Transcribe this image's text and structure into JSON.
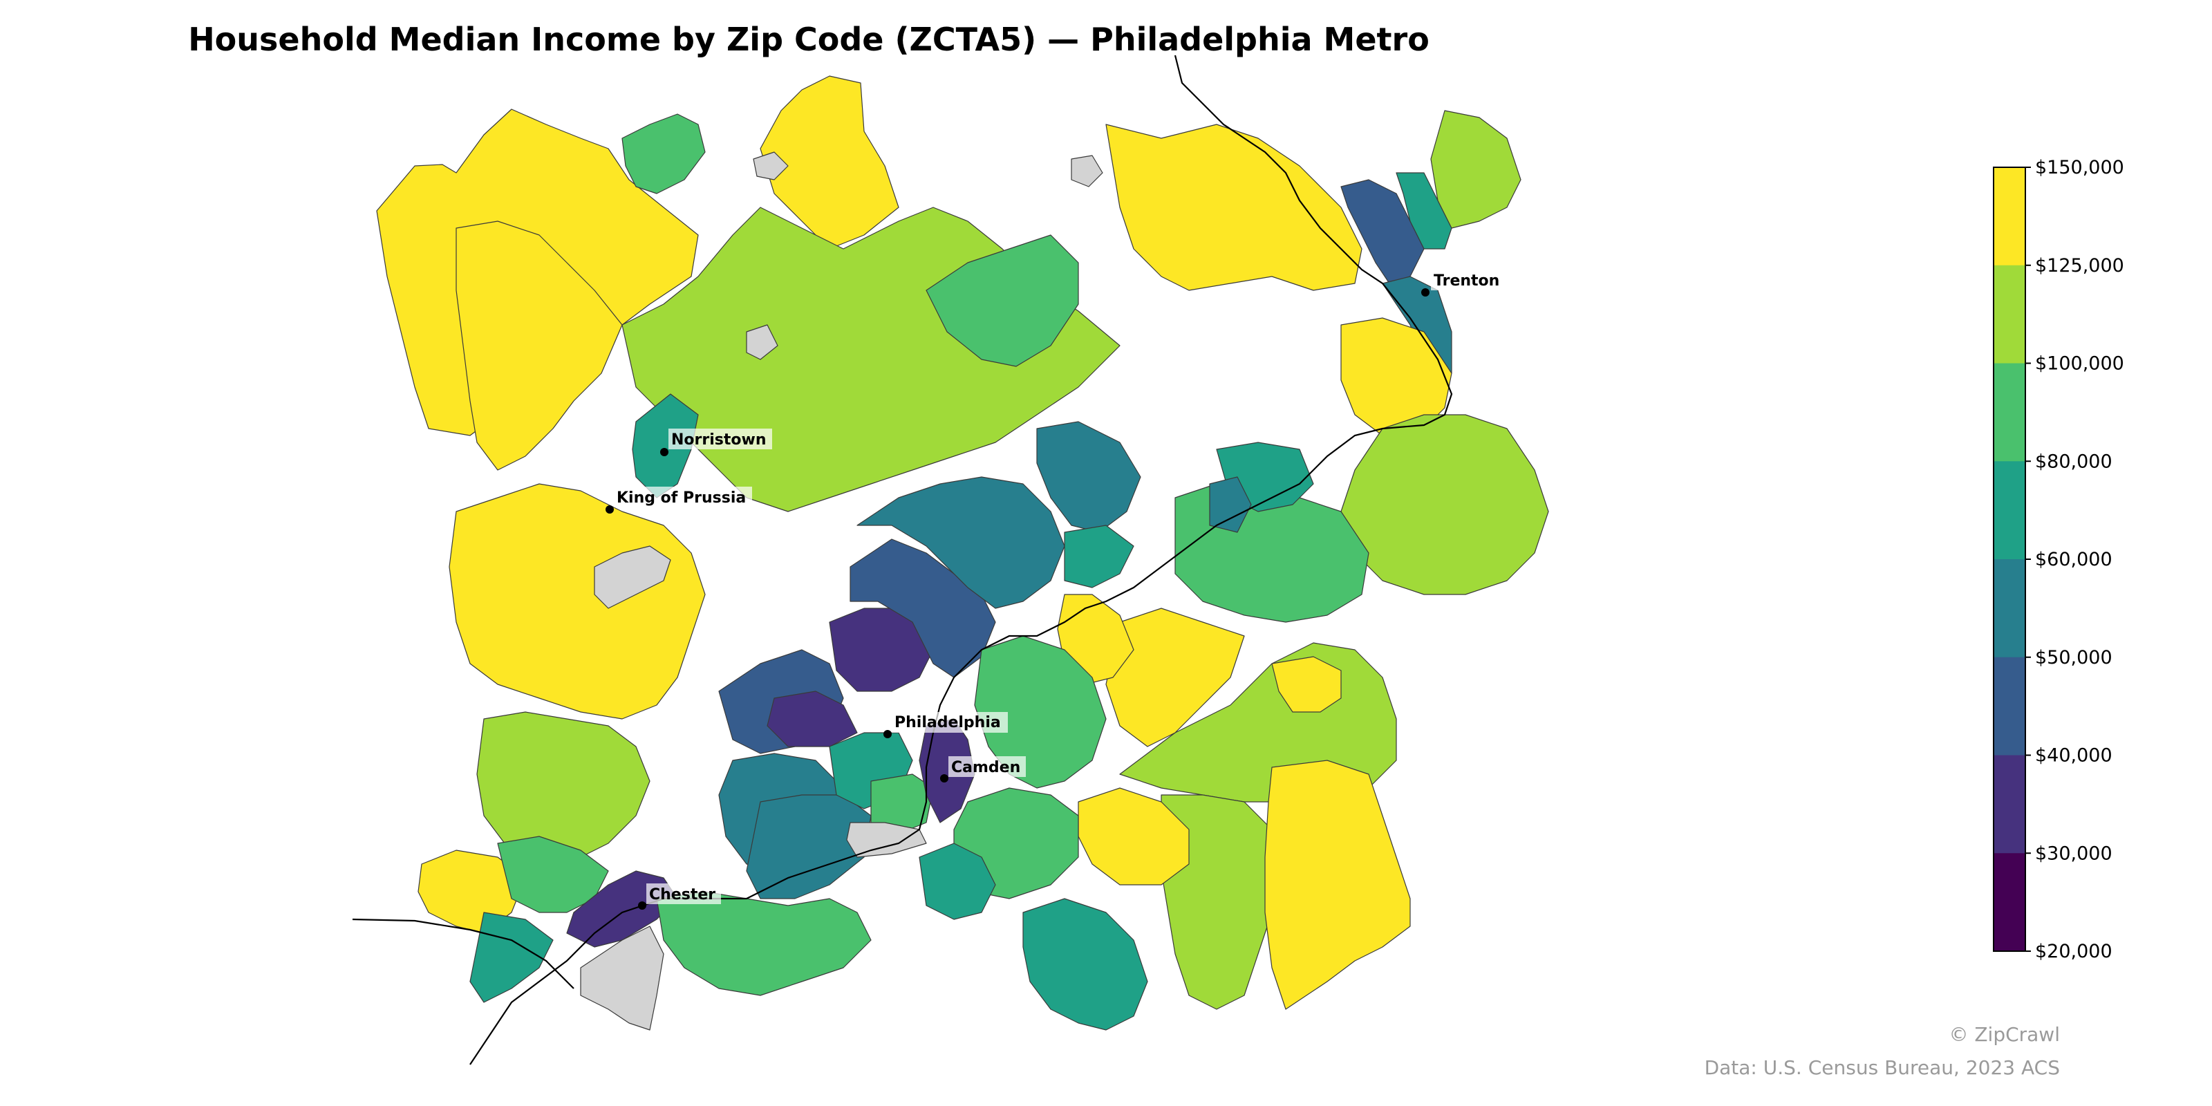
{
  "title": "Household Median Income by Zip Code (ZCTA5) — Philadelphia Metro",
  "colorbar": {
    "ticks": [
      "$150,000",
      "$125,000",
      "$100,000",
      "$80,000",
      "$60,000",
      "$50,000",
      "$40,000",
      "$30,000",
      "$20,000"
    ],
    "colors": [
      "#fde725",
      "#a0da39",
      "#4ac16d",
      "#1fa187",
      "#277f8e",
      "#365c8d",
      "#46327e",
      "#440154"
    ]
  },
  "cities": [
    {
      "name": "Trenton"
    },
    {
      "name": "Norristown"
    },
    {
      "name": "King of Prussia"
    },
    {
      "name": "Philadelphia"
    },
    {
      "name": "Camden"
    },
    {
      "name": "Chester"
    }
  ],
  "credits": {
    "line1": "© ZipCrawl",
    "line2": "Data: U.S. Census Bureau, 2023 ACS"
  }
}
